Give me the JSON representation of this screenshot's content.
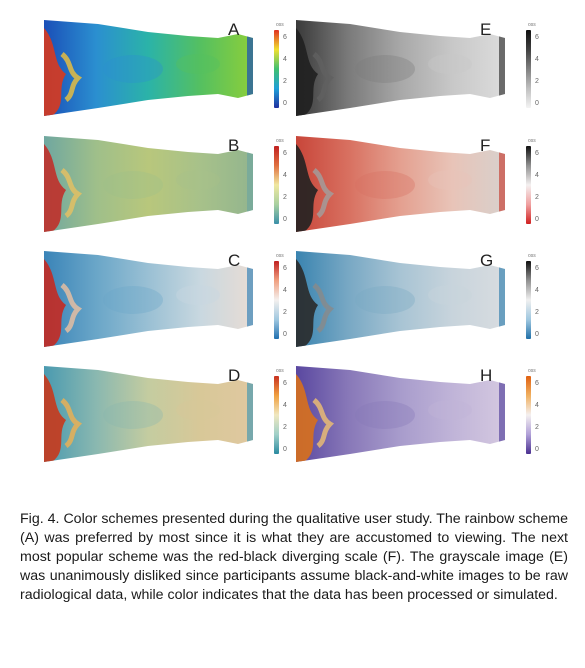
{
  "figure": {
    "panels": [
      {
        "letter": "A",
        "scheme": "rainbow",
        "colorbar_label": "oss",
        "ticks": [
          "6",
          "4",
          "2",
          "0"
        ]
      },
      {
        "letter": "B",
        "scheme": "green-red",
        "colorbar_label": "oss",
        "ticks": [
          "6",
          "4",
          "2",
          "0"
        ]
      },
      {
        "letter": "C",
        "scheme": "blue-red",
        "colorbar_label": "oss",
        "ticks": [
          "6",
          "4",
          "2",
          "0"
        ]
      },
      {
        "letter": "D",
        "scheme": "teal-orange",
        "colorbar_label": "oss",
        "ticks": [
          "6",
          "4",
          "2",
          "0"
        ]
      },
      {
        "letter": "E",
        "scheme": "grayscale",
        "colorbar_label": "oss",
        "ticks": [
          "6",
          "4",
          "2",
          "0"
        ]
      },
      {
        "letter": "F",
        "scheme": "red-black",
        "colorbar_label": "oss",
        "ticks": [
          "6",
          "4",
          "2",
          "0"
        ]
      },
      {
        "letter": "G",
        "scheme": "blue-black",
        "colorbar_label": "oss",
        "ticks": [
          "6",
          "4",
          "2",
          "0"
        ]
      },
      {
        "letter": "H",
        "scheme": "purple-orange",
        "colorbar_label": "oss",
        "ticks": [
          "6",
          "4",
          "2",
          "0"
        ]
      }
    ],
    "caption": "Fig. 4. Color schemes presented during the qualitative user study. The rainbow scheme (A) was preferred by most since it is what they are accustomed to viewing. The next most popular scheme was the red-black diverging scale (F). The grayscale image (E) was unanimously disliked since participants assume black-and-white images to be raw radiological data, while color indicates that the data has been processed or simulated."
  }
}
